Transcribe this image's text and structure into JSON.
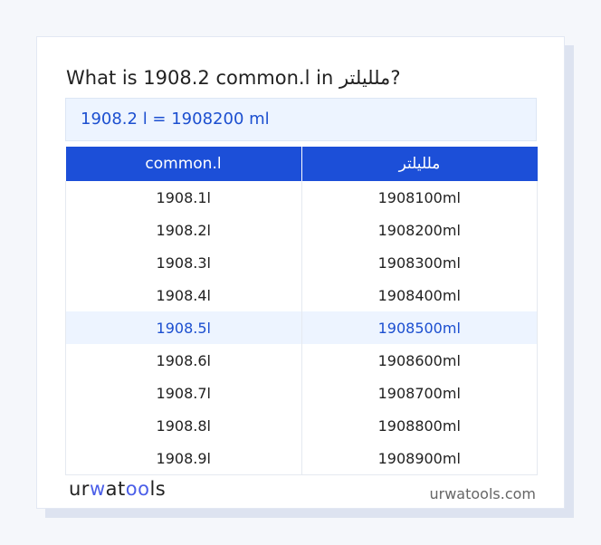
{
  "title": "What is 1908.2 common.l in ملليلتر?",
  "result": "1908.2 l = 1908200 ml",
  "table": {
    "headers": [
      "common.l",
      "ملليلتر"
    ],
    "rows": [
      [
        "1908.1l",
        "1908100ml"
      ],
      [
        "1908.2l",
        "1908200ml"
      ],
      [
        "1908.3l",
        "1908300ml"
      ],
      [
        "1908.4l",
        "1908400ml"
      ],
      [
        "1908.5l",
        "1908500ml"
      ],
      [
        "1908.6l",
        "1908600ml"
      ],
      [
        "1908.7l",
        "1908700ml"
      ],
      [
        "1908.8l",
        "1908800ml"
      ],
      [
        "1908.9l",
        "1908900ml"
      ]
    ],
    "highlighted_row": 4
  },
  "footer": {
    "logo": "urwatools",
    "site": "urwatools.com"
  },
  "colors": {
    "accent": "#1c4fd8",
    "highlight_bg": "#edf4ff"
  }
}
